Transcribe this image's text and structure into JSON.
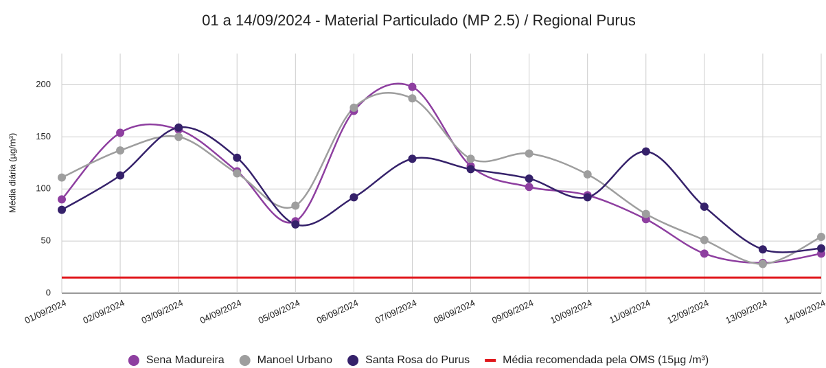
{
  "chart_data": {
    "type": "line",
    "title": "01 a 14/09/2024 - Material Particulado (MP 2.5) / Regional Purus",
    "y_label": "Média diária (µg/m³)",
    "categories": [
      "01/09/2024",
      "02/09/2024",
      "03/09/2024",
      "04/09/2024",
      "05/09/2024",
      "06/09/2024",
      "07/09/2024",
      "08/09/2024",
      "09/09/2024",
      "10/09/2024",
      "11/09/2024",
      "12/09/2024",
      "13/09/2024",
      "14/09/2024"
    ],
    "series": [
      {
        "name": "Sena Madureira",
        "color": "#8e3fa0",
        "marker": "circle",
        "smooth": true,
        "values": [
          90,
          154,
          157,
          117,
          69,
          175,
          198,
          122,
          102,
          94,
          71,
          38,
          29,
          38
        ]
      },
      {
        "name": "Manoel Urbano",
        "color": "#9e9e9e",
        "marker": "circle",
        "smooth": true,
        "values": [
          111,
          137,
          150,
          115,
          84,
          178,
          187,
          129,
          134,
          114,
          76,
          51,
          28,
          54
        ]
      },
      {
        "name": "Santa Rosa do Purus",
        "color": "#35216a",
        "marker": "circle",
        "smooth": true,
        "values": [
          80,
          113,
          159,
          130,
          66,
          92,
          129,
          119,
          110,
          92,
          136,
          83,
          42,
          43
        ]
      },
      {
        "name": "Média recomendada pela OMS (15µg /m³)",
        "color": "#e0161b",
        "marker": "none",
        "smooth": false,
        "values": [
          15,
          15,
          15,
          15,
          15,
          15,
          15,
          15,
          15,
          15,
          15,
          15,
          15,
          15
        ]
      }
    ],
    "ylim": [
      0,
      230
    ],
    "yticks": [
      0,
      50,
      100,
      150,
      200
    ],
    "grid": true,
    "legend": "bottom"
  }
}
